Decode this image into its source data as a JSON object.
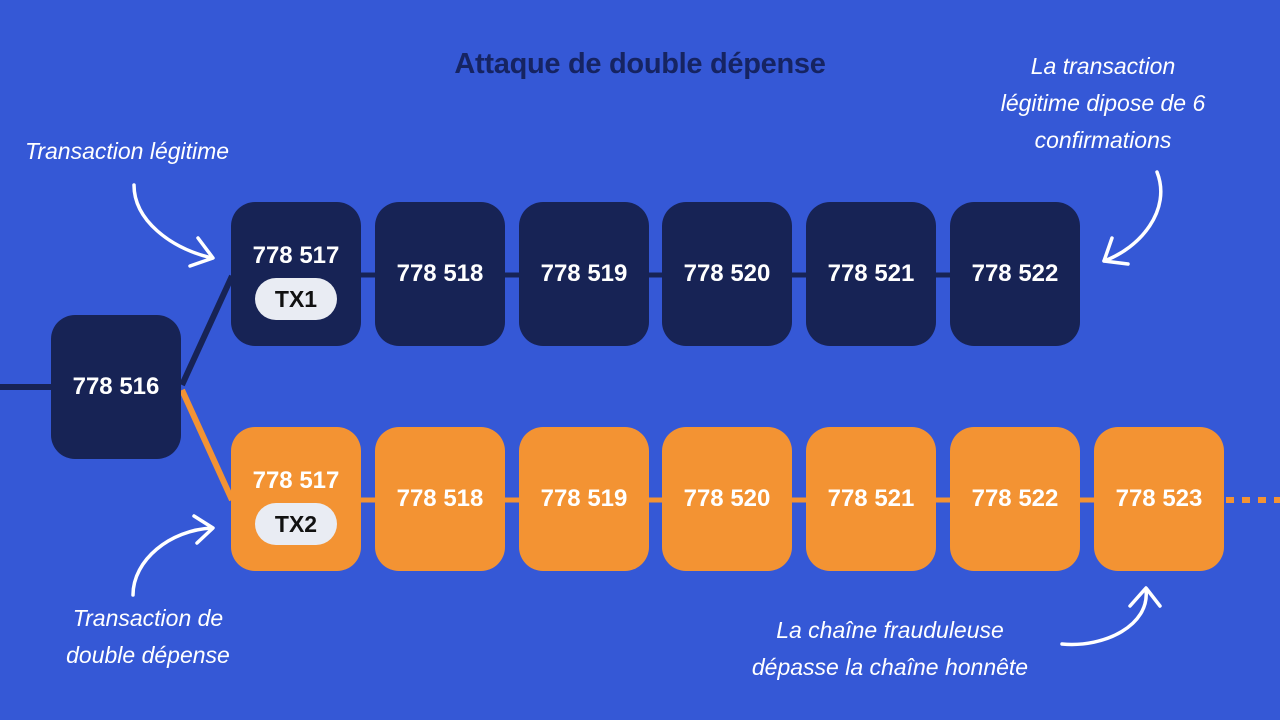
{
  "title": "Attaque de double dépense",
  "genesis_block": "778 516",
  "honest_chain": {
    "blocks": [
      "778 517",
      "778 518",
      "778 519",
      "778 520",
      "778 521",
      "778 522"
    ],
    "tx_label": "TX1",
    "color": "#172355"
  },
  "fraudulent_chain": {
    "blocks": [
      "778 517",
      "778 518",
      "778 519",
      "778 520",
      "778 521",
      "778 522",
      "778 523"
    ],
    "tx_label": "TX2",
    "color": "#f39333"
  },
  "annotations": {
    "legit_tx": "Transaction légitime",
    "confirmations": [
      "La transaction",
      "légitime dipose de 6",
      "confirmations"
    ],
    "double_spend_tx": [
      "Transaction de",
      "double dépense"
    ],
    "fraud_chain": [
      "La chaîne frauduleuse",
      "dépasse la chaîne honnête"
    ]
  },
  "colors": {
    "background": "#3558d6",
    "navy": "#172355",
    "orange": "#f39333"
  }
}
